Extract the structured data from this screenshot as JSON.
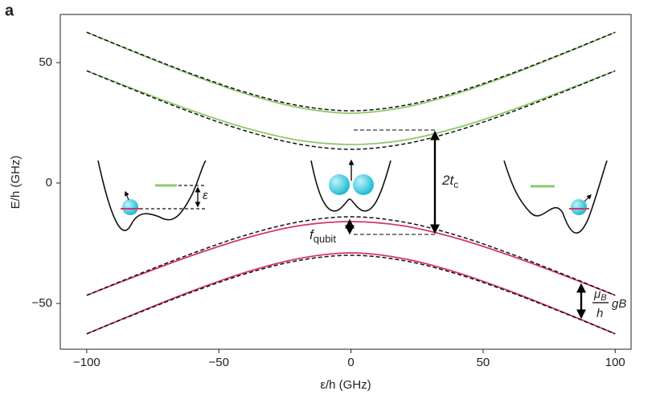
{
  "chart_data": {
    "type": "line",
    "panel_label": "a",
    "x_label": "ε/h (GHz)",
    "y_label": "E/h (GHz)",
    "x": [
      -100,
      -80,
      -60,
      -40,
      -20,
      0,
      20,
      40,
      60,
      80,
      100
    ],
    "series": [
      {
        "color": "#8cc96b",
        "values": [
          62.6,
          53.5,
          44.8,
          37.1,
          31.4,
          29.0,
          31.4,
          37.1,
          44.8,
          53.5,
          62.6
        ]
      },
      {
        "color": "#8cc96b",
        "values": [
          46.6,
          38.1,
          30.0,
          22.9,
          17.8,
          16.0,
          17.8,
          22.9,
          30.0,
          38.1,
          46.6
        ]
      },
      {
        "color": "#d6336c",
        "values": [
          -46.6,
          -38.1,
          -30.0,
          -22.9,
          -17.8,
          -16.0,
          -17.8,
          -22.9,
          -30.0,
          -38.1,
          -46.6
        ]
      },
      {
        "color": "#d6336c",
        "values": [
          -62.6,
          -53.5,
          -44.8,
          -37.1,
          -31.4,
          -29.0,
          -31.4,
          -37.1,
          -44.8,
          -53.5,
          -62.6
        ]
      },
      {
        "color": "#111111",
        "dashed": true,
        "values": [
          62.6,
          53.7,
          45.2,
          37.7,
          32.2,
          30.0,
          32.2,
          37.7,
          45.2,
          53.7,
          62.6
        ]
      },
      {
        "color": "#111111",
        "dashed": true,
        "values": [
          46.6,
          37.7,
          29.2,
          21.7,
          16.2,
          14.0,
          16.2,
          21.7,
          29.2,
          37.7,
          46.6
        ]
      },
      {
        "color": "#111111",
        "dashed": true,
        "values": [
          -46.6,
          -37.7,
          -29.2,
          -21.7,
          -16.2,
          -14.0,
          -16.2,
          -21.7,
          -29.2,
          -37.7,
          -46.6
        ]
      },
      {
        "color": "#111111",
        "dashed": true,
        "values": [
          -62.6,
          -53.7,
          -45.2,
          -37.7,
          -32.2,
          -30.0,
          -32.2,
          -37.7,
          -45.2,
          -53.7,
          -62.6
        ]
      }
    ],
    "xlim": [
      -110,
      106
    ],
    "ylim": [
      -69,
      70
    ],
    "xticks": [
      {
        "value": -100,
        "label": "−100"
      },
      {
        "value": -50,
        "label": "−50"
      },
      0,
      50,
      100
    ],
    "yticks": [
      {
        "value": -50,
        "label": "−50"
      },
      0,
      50
    ],
    "annotations": {
      "tunnel": "2t",
      "tunnel_sub": "c",
      "qubit": "f",
      "qubit_sub": "qubit",
      "detuning": "ε",
      "zeeman_num": "μ",
      "zeeman_num_sub": "B",
      "zeeman_den": "h",
      "zeeman_rest": "gB"
    }
  }
}
